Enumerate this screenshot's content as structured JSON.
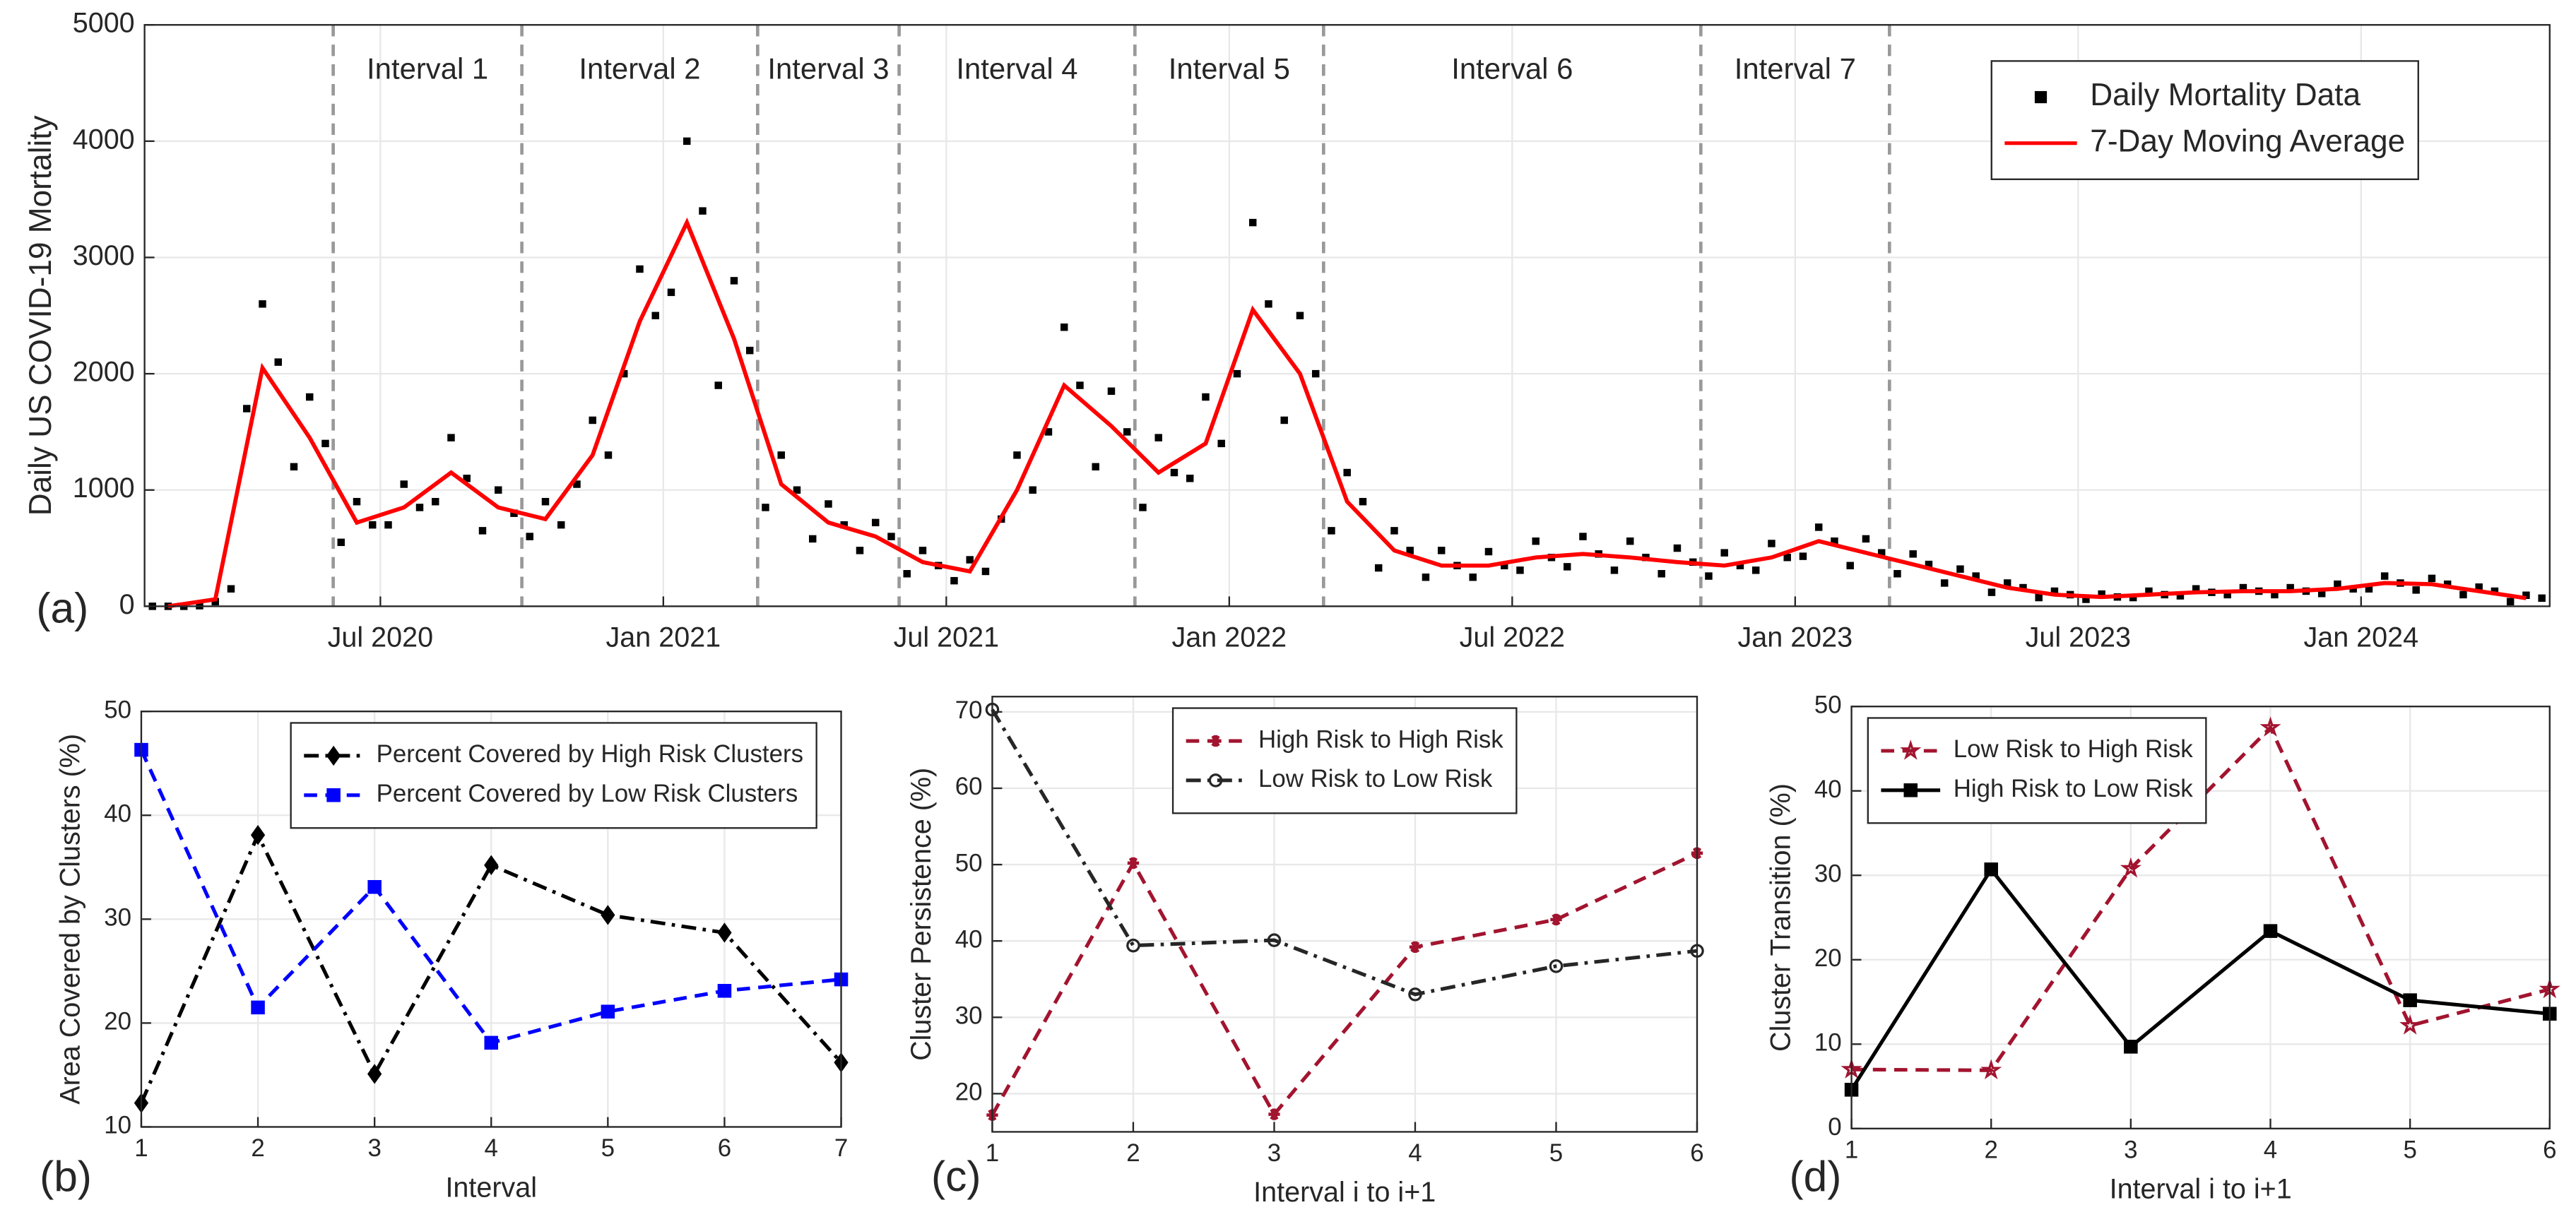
{
  "chart_data": [
    {
      "type": "line",
      "panel_label": "(a)",
      "ylabel": "Daily US COVID-19 Mortality",
      "x": [
        "2020-02",
        "2020-03",
        "2020-04",
        "2020-05",
        "2020-06",
        "2020-07",
        "2020-08",
        "2020-09",
        "2020-10",
        "2020-11",
        "2020-12",
        "2021-01",
        "2021-02",
        "2021-03",
        "2021-04",
        "2021-05",
        "2021-06",
        "2021-07",
        "2021-08",
        "2021-09",
        "2021-10",
        "2021-11",
        "2021-12",
        "2022-01",
        "2022-02",
        "2022-03",
        "2022-04",
        "2022-05",
        "2022-06",
        "2022-07",
        "2022-08",
        "2022-09",
        "2022-10",
        "2022-11",
        "2022-12",
        "2023-01",
        "2023-02",
        "2023-03",
        "2023-04",
        "2023-05",
        "2023-06",
        "2023-07",
        "2023-08",
        "2023-09",
        "2023-10",
        "2023-11",
        "2023-12",
        "2024-01",
        "2024-02",
        "2024-03",
        "2024-04"
      ],
      "xlim": [
        "2020-02",
        "2024-05"
      ],
      "xticks": [
        {
          "value": "2020-07",
          "label": "Jul 2020"
        },
        {
          "value": "2021-01",
          "label": "Jan 2021"
        },
        {
          "value": "2021-07",
          "label": "Jul 2021"
        },
        {
          "value": "2022-01",
          "label": "Jan 2022"
        },
        {
          "value": "2022-07",
          "label": "Jul 2022"
        },
        {
          "value": "2023-01",
          "label": "Jan 2023"
        },
        {
          "value": "2023-07",
          "label": "Jul 2023"
        },
        {
          "value": "2024-01",
          "label": "Jan 2024"
        }
      ],
      "ylim": [
        0,
        5000
      ],
      "yticks": [
        0,
        1000,
        2000,
        3000,
        4000,
        5000
      ],
      "grid": true,
      "legend": "upper right",
      "intervals": {
        "bounds": [
          "2020-06",
          "2020-10",
          "2021-03",
          "2021-06",
          "2021-11",
          "2022-03",
          "2022-11",
          "2023-03"
        ],
        "labels": [
          "Interval 1",
          "Interval 2",
          "Interval 3",
          "Interval 4",
          "Interval 5",
          "Interval 6",
          "Interval 7"
        ]
      },
      "series": [
        {
          "name": "Daily  Mortality Data",
          "color": "#000000",
          "linestyle": "none",
          "marker": "square",
          "marker_fill": true,
          "values": [
            [
              0,
              0,
              0
            ],
            [
              5,
              40,
              150
            ],
            [
              1700,
              2600,
              2100
            ],
            [
              1200,
              1800,
              1400
            ],
            [
              550,
              900,
              700
            ],
            [
              700,
              1050,
              850
            ],
            [
              900,
              1450,
              1100
            ],
            [
              650,
              1000,
              800
            ],
            [
              600,
              900,
              700
            ],
            [
              1050,
              1600,
              1300
            ],
            [
              2000,
              2900,
              2500
            ],
            [
              2700,
              4000,
              3400
            ],
            [
              1900,
              2800,
              2200
            ],
            [
              850,
              1300,
              1000
            ],
            [
              580,
              880,
              700
            ],
            [
              480,
              720,
              600
            ],
            [
              280,
              480,
              350
            ],
            [
              220,
              400,
              300
            ],
            [
              750,
              1300,
              1000
            ],
            [
              1500,
              2400,
              1900
            ],
            [
              1200,
              1850,
              1500
            ],
            [
              850,
              1450,
              1150
            ],
            [
              1100,
              1800,
              1400
            ],
            [
              2000,
              3300,
              2600
            ],
            [
              1600,
              2500,
              2000
            ],
            [
              650,
              1150,
              900
            ],
            [
              330,
              650,
              480
            ],
            [
              250,
              480,
              350
            ],
            [
              250,
              470,
              350
            ],
            [
              310,
              560,
              420
            ],
            [
              340,
              600,
              450
            ],
            [
              310,
              560,
              420
            ],
            [
              280,
              500,
              380
            ],
            [
              260,
              460,
              350
            ],
            [
              310,
              540,
              420
            ],
            [
              430,
              680,
              560
            ],
            [
              350,
              580,
              460
            ],
            [
              280,
              450,
              360
            ],
            [
              200,
              320,
              260
            ],
            [
              120,
              200,
              160
            ],
            [
              75,
              130,
              100
            ],
            [
              60,
              105,
              80
            ],
            [
              75,
              130,
              100
            ],
            [
              90,
              150,
              120
            ],
            [
              100,
              160,
              130
            ],
            [
              100,
              160,
              130
            ],
            [
              110,
              190,
              150
            ],
            [
              150,
              260,
              200
            ],
            [
              140,
              240,
              190
            ],
            [
              100,
              165,
              130
            ],
            [
              40,
              95,
              70
            ]
          ]
        },
        {
          "name": "7-Day Moving Average",
          "color": "#ff0000",
          "linestyle": "solid",
          "marker": "none",
          "values": [
            0,
            60,
            2050,
            1450,
            720,
            850,
            1150,
            850,
            750,
            1300,
            2450,
            3300,
            2300,
            1050,
            720,
            600,
            380,
            300,
            1000,
            1900,
            1550,
            1150,
            1400,
            2550,
            2000,
            900,
            480,
            350,
            350,
            420,
            450,
            420,
            380,
            350,
            420,
            560,
            460,
            360,
            260,
            160,
            100,
            80,
            100,
            120,
            130,
            130,
            150,
            200,
            190,
            130,
            70
          ]
        }
      ]
    },
    {
      "type": "line",
      "panel_label": "(b)",
      "xlabel": "Interval",
      "ylabel": "Area Covered by Clusters (%)",
      "x": [
        1,
        2,
        3,
        4,
        5,
        6,
        7
      ],
      "xlim": [
        1,
        7
      ],
      "xticks": [
        1,
        2,
        3,
        4,
        5,
        6,
        7
      ],
      "ylim": [
        10,
        50
      ],
      "yticks": [
        10,
        20,
        30,
        40,
        50
      ],
      "grid": true,
      "legend": "upper right",
      "series": [
        {
          "name": "Percent Covered by High Risk Clusters",
          "color": "#000000",
          "linestyle": "dashdot",
          "marker": "diamond",
          "marker_fill": true,
          "values": [
            12.3,
            38.1,
            15.1,
            35.2,
            30.4,
            28.7,
            16.2
          ]
        },
        {
          "name": "Percent Covered by Low Risk Clusters",
          "color": "#0000ff",
          "linestyle": "dashed",
          "marker": "square",
          "marker_fill": true,
          "values": [
            46.3,
            21.5,
            33.1,
            18.1,
            21.1,
            23.1,
            24.2
          ]
        }
      ]
    },
    {
      "type": "line",
      "panel_label": "(c)",
      "xlabel": "Interval i to i+1",
      "ylabel": "Cluster Persistence (%)",
      "x": [
        1,
        2,
        3,
        4,
        5,
        6
      ],
      "xlim": [
        1,
        6
      ],
      "xticks": [
        1,
        2,
        3,
        4,
        5,
        6
      ],
      "ylim": [
        15,
        72
      ],
      "yticks": [
        20,
        30,
        40,
        50,
        60,
        70
      ],
      "grid": true,
      "legend": "upper center",
      "series": [
        {
          "name": "High Risk to High Risk",
          "color": "#a2142f",
          "linestyle": "dashed",
          "marker": "asterisk",
          "marker_fill": false,
          "values": [
            17.2,
            50.2,
            17.3,
            39.2,
            42.8,
            51.5
          ]
        },
        {
          "name": "Low Risk to Low Risk",
          "color": "#262626",
          "linestyle": "dashdot",
          "marker": "circle",
          "marker_fill": false,
          "values": [
            70.3,
            39.4,
            40.1,
            33.0,
            36.7,
            38.7
          ]
        }
      ]
    },
    {
      "type": "line",
      "panel_label": "(d)",
      "xlabel": "Interval i to i+1",
      "ylabel": "Cluster Transition (%)",
      "x": [
        1,
        2,
        3,
        4,
        5,
        6
      ],
      "xlim": [
        1,
        6
      ],
      "xticks": [
        1,
        2,
        3,
        4,
        5,
        6
      ],
      "ylim": [
        0,
        50
      ],
      "yticks": [
        0,
        10,
        20,
        30,
        40,
        50
      ],
      "grid": true,
      "legend": "upper left",
      "series": [
        {
          "name": "Low Risk to High Risk",
          "color": "#a2142f",
          "linestyle": "dashed",
          "marker": "star",
          "marker_fill": false,
          "values": [
            7.0,
            6.9,
            30.8,
            47.5,
            12.2,
            16.5
          ]
        },
        {
          "name": "High Risk to Low Risk",
          "color": "#000000",
          "linestyle": "solid",
          "marker": "square",
          "marker_fill": true,
          "values": [
            4.6,
            30.7,
            9.7,
            23.4,
            15.2,
            13.6
          ]
        }
      ]
    }
  ]
}
